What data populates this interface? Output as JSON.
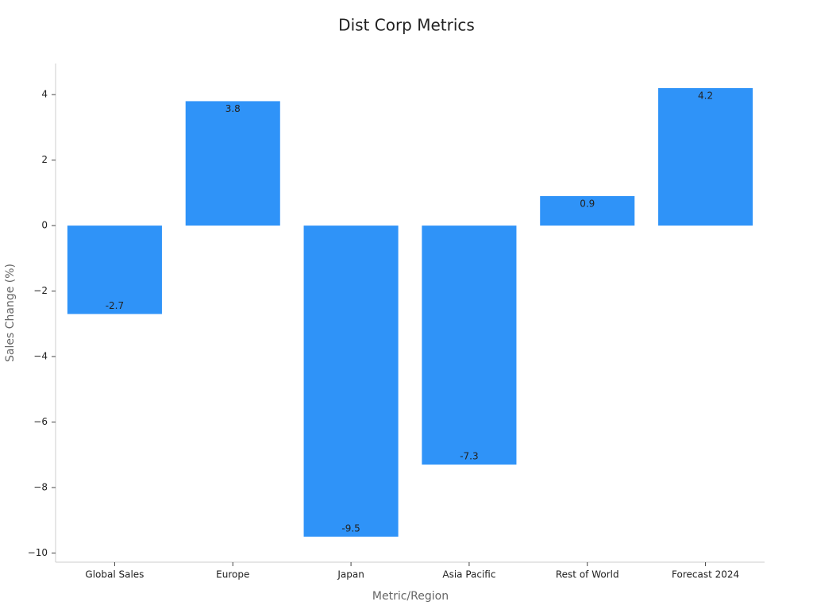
{
  "chart_data": {
    "type": "bar",
    "title": "Dist Corp Metrics",
    "x_label": "Metric/Region",
    "y_label": "Sales Change (%)",
    "categories": [
      "Global Sales",
      "Europe",
      "Japan",
      "Asia Pacific",
      "Rest of World",
      "Forecast 2024"
    ],
    "values": [
      -2.7,
      3.8,
      -9.5,
      -7.3,
      0.9,
      4.2
    ],
    "color": "#2f93f8",
    "ylim": [
      -10.28,
      4.95
    ],
    "yticks": [
      {
        "value": -10,
        "label": "−10"
      },
      {
        "value": -8,
        "label": "−8"
      },
      {
        "value": -6,
        "label": "−6"
      },
      {
        "value": -4,
        "label": "−4"
      },
      {
        "value": -2,
        "label": "−2"
      },
      0,
      2,
      4
    ],
    "grid": false
  }
}
